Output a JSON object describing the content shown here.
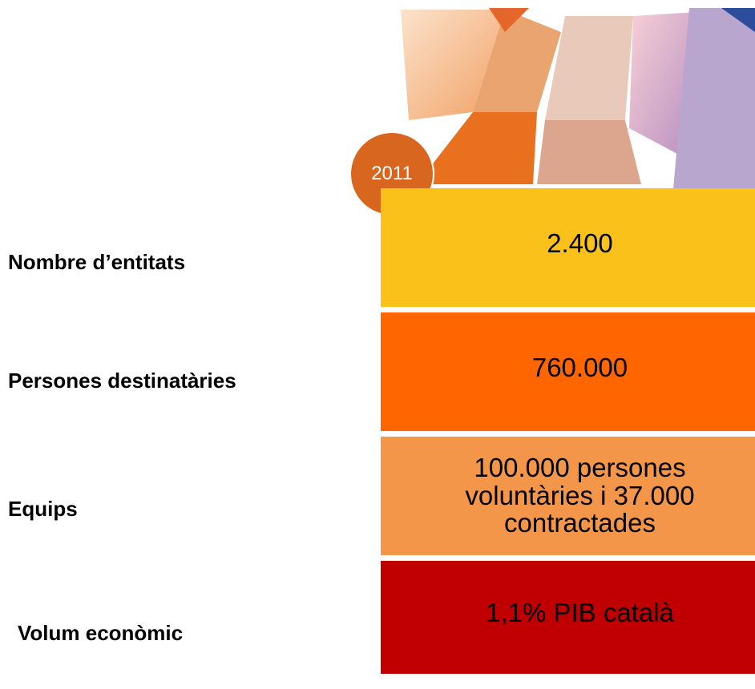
{
  "badge": {
    "year": "2011"
  },
  "rows": [
    {
      "label": "Nombre d’entitats",
      "value": "2.400"
    },
    {
      "label": "Persones destinatàries",
      "value": "760.000"
    },
    {
      "label": "Equips",
      "value": "100.000 persones voluntàries i 37.000 contractades"
    },
    {
      "label": "Volum econòmic",
      "value": "1,1% PIB català"
    }
  ]
}
